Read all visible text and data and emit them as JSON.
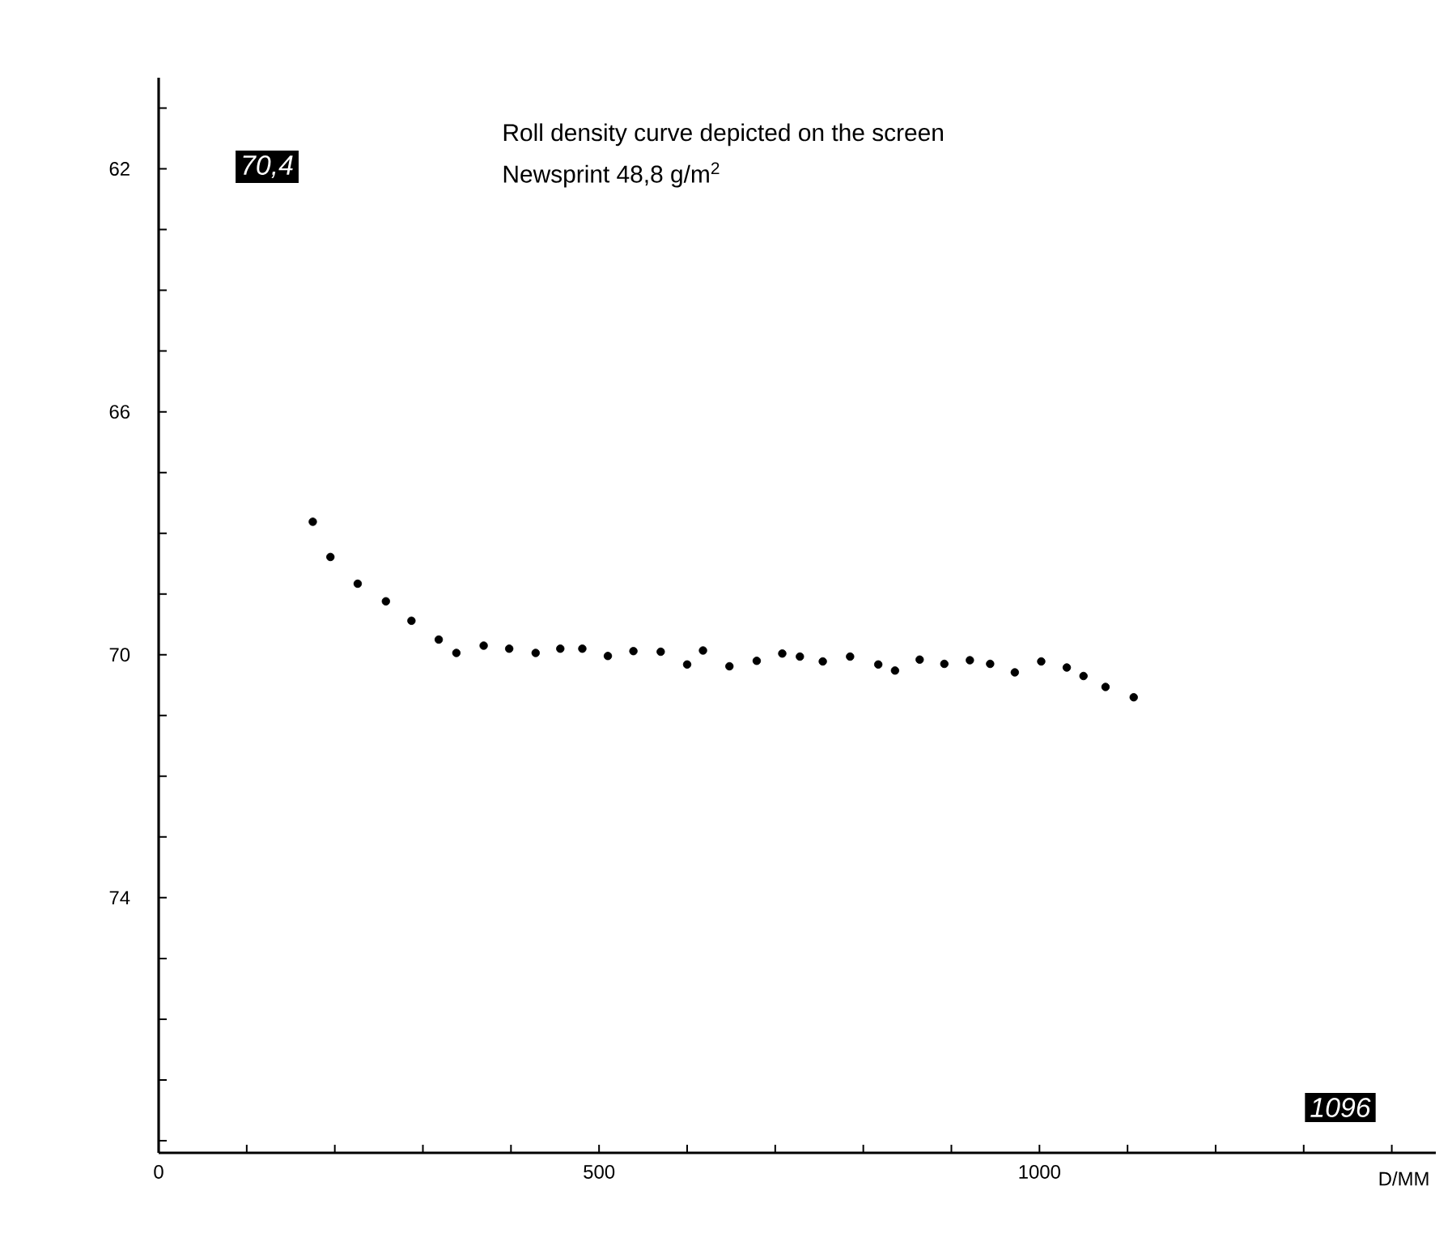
{
  "chart_data": {
    "type": "scatter",
    "title": "Roll density curve depicted on the screen",
    "subtitle": "Newsprint 48,8 g/m$^{2}$",
    "xlabel": "D/MM",
    "annotations": [
      "70,4",
      "1096"
    ],
    "x": [
      175,
      195,
      226,
      258,
      287,
      318,
      338,
      369,
      398,
      428,
      456,
      481,
      510,
      539,
      570,
      600,
      618,
      648,
      679,
      708,
      728,
      754,
      785,
      817,
      836,
      864,
      892,
      921,
      944,
      972,
      1002,
      1031,
      1050,
      1075,
      1107
    ],
    "series": [
      {
        "color": "#000000",
        "values": [
          67.81,
          68.39,
          68.83,
          69.12,
          69.44,
          69.75,
          69.97,
          69.85,
          69.9,
          69.97,
          69.9,
          69.9,
          70.02,
          69.94,
          69.95,
          70.16,
          69.93,
          70.19,
          70.1,
          69.98,
          70.03,
          70.11,
          70.03,
          70.16,
          70.26,
          70.08,
          70.15,
          70.09,
          70.15,
          70.29,
          70.11,
          70.21,
          70.35,
          70.53,
          70.7
        ]
      }
    ],
    "xlim": [
      0,
      1450
    ],
    "ylim": [
      78.2,
      60.5
    ],
    "xticks": [
      0,
      {
        "value": 100,
        "label": null
      },
      {
        "value": 200,
        "label": null
      },
      {
        "value": 300,
        "label": null
      },
      {
        "value": 400,
        "label": null
      },
      500,
      {
        "value": 600,
        "label": null
      },
      {
        "value": 700,
        "label": null
      },
      {
        "value": 800,
        "label": null
      },
      {
        "value": 900,
        "label": null
      },
      1000,
      {
        "value": 1100,
        "label": null
      },
      {
        "value": 1200,
        "label": null
      },
      {
        "value": 1300,
        "label": null
      },
      {
        "value": 1400,
        "label": null
      }
    ],
    "yticks": [
      {
        "value": 61,
        "label": null
      },
      62,
      {
        "value": 63,
        "label": null
      },
      {
        "value": 64,
        "label": null
      },
      {
        "value": 65,
        "label": null
      },
      66,
      {
        "value": 67,
        "label": null
      },
      {
        "value": 68,
        "label": null
      },
      {
        "value": 69,
        "label": null
      },
      70,
      {
        "value": 71,
        "label": null
      },
      {
        "value": 72,
        "label": null
      },
      {
        "value": 73,
        "label": null
      },
      74,
      {
        "value": 75,
        "label": null
      },
      {
        "value": 76,
        "label": null
      },
      {
        "value": 77,
        "label": null
      },
      {
        "value": 78,
        "label": null
      }
    ],
    "marker": "circle"
  }
}
